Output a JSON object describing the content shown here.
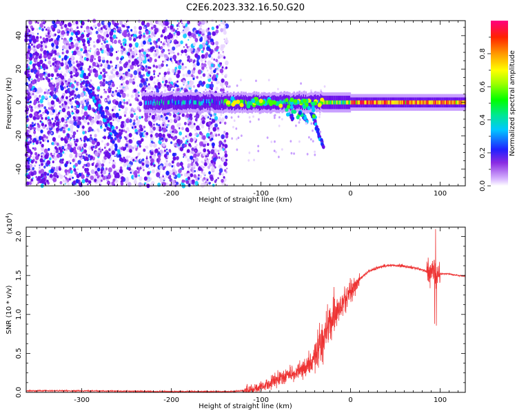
{
  "title": "C2E6.2023.332.16.50.G20",
  "colorbar": {
    "label": "Normalized spectral amplitude",
    "ticks": [
      "0.0",
      "0.2",
      "0.4",
      "0.6",
      "0.8"
    ],
    "tick_values": [
      0.0,
      0.2,
      0.4,
      0.6,
      0.8
    ],
    "range": [
      0,
      1
    ]
  },
  "chart_data": [
    {
      "type": "heatmap",
      "xlabel": "Height of straight line (km)",
      "ylabel": "Frequency (Hz)",
      "xlim": [
        -362,
        128
      ],
      "ylim": [
        -50,
        49
      ],
      "x_ticks": [
        -300,
        -200,
        -100,
        0,
        100
      ],
      "x_tick_labels": [
        "-300",
        "-200",
        "-100",
        "0",
        "100"
      ],
      "y_ticks": [
        -40,
        -20,
        0,
        20,
        40
      ],
      "y_tick_labels": [
        "-40",
        "-20",
        "0",
        "20",
        "40"
      ],
      "features": {
        "noise_region": [
          -362,
          -138
        ],
        "carrier_frequency": 0,
        "carrier_start": -230,
        "drift_tracks": [
          {
            "from": [
              -300,
              20
            ],
            "to": [
              -255,
              -35
            ]
          },
          {
            "from": [
              -295,
              9
            ],
            "to": [
              -260,
              -20
            ]
          },
          {
            "from": [
              -72,
              5
            ],
            "to": [
              -65,
              -10
            ]
          },
          {
            "from": [
              -62,
              2
            ],
            "to": [
              -48,
              -12
            ]
          },
          {
            "from": [
              -45,
              -4
            ],
            "to": [
              -30,
              -27
            ]
          }
        ]
      }
    },
    {
      "type": "line",
      "xlabel": "Height of straight line (km)",
      "ylabel": "SNR (10 * v/v)",
      "multiplier": "(x10^4)",
      "multiplier_base": "(x10",
      "multiplier_exp": "4",
      "multiplier_close": ")",
      "xlim": [
        -362,
        128
      ],
      "ylim": [
        0,
        2.12
      ],
      "x_ticks": [
        -300,
        -200,
        -100,
        0,
        100
      ],
      "x_tick_labels": [
        "-300",
        "-200",
        "-100",
        "0",
        "100"
      ],
      "y_ticks": [
        0,
        0.5,
        1.0,
        1.5,
        2.0
      ],
      "y_tick_labels": [
        "0.0",
        "0.5",
        "1.0",
        "1.5",
        "2.0"
      ],
      "color": "#ee3333",
      "series": [
        {
          "x": [
            -362,
            -300,
            -200,
            -130,
            -115,
            -100,
            -90,
            -80,
            -70,
            -60,
            -50,
            -40,
            -35,
            -30,
            -25,
            -20,
            -15,
            -10,
            -5,
            0,
            10,
            20,
            30,
            40,
            50,
            60,
            70,
            80,
            85,
            90,
            93,
            95,
            97,
            100,
            110,
            120,
            128
          ],
          "y": [
            0.02,
            0.02,
            0.01,
            0.01,
            0.03,
            0.07,
            0.12,
            0.18,
            0.22,
            0.25,
            0.32,
            0.45,
            0.6,
            0.7,
            0.85,
            0.95,
            1.05,
            1.1,
            1.2,
            1.3,
            1.45,
            1.55,
            1.6,
            1.63,
            1.63,
            1.62,
            1.6,
            1.57,
            1.55,
            1.55,
            1.6,
            1.45,
            1.55,
            1.52,
            1.52,
            1.5,
            1.49
          ]
        }
      ]
    }
  ]
}
